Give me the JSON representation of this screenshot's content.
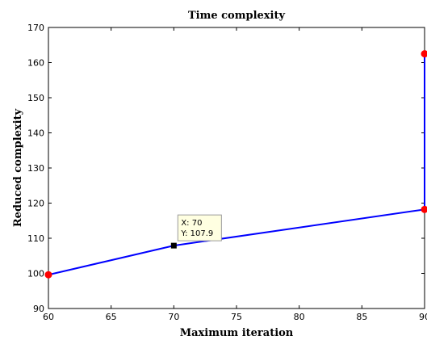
{
  "chart_data": {
    "type": "line",
    "title": "Time complexity",
    "xlabel": "Maximum iteration",
    "ylabel": "Reduced complexity",
    "xlim": [
      60,
      90
    ],
    "ylim": [
      90,
      170
    ],
    "xticks": [
      "60",
      "65",
      "70",
      "75",
      "80",
      "85",
      "90"
    ],
    "yticks": [
      "90",
      "100",
      "110",
      "120",
      "130",
      "140",
      "150",
      "160",
      "170"
    ],
    "series": [
      {
        "x": [
          60,
          70,
          90,
          90
        ],
        "y": [
          99.6,
          107.9,
          118.2,
          162.5
        ],
        "color": "#0000ff",
        "marker_color": "#ff0000",
        "marked_points": [
          0,
          2,
          3
        ]
      }
    ],
    "datatip": {
      "x": 70,
      "y": 107.9,
      "line1": "X: 70",
      "line2": "Y: 107.9"
    },
    "grid": false,
    "legend": "none"
  }
}
